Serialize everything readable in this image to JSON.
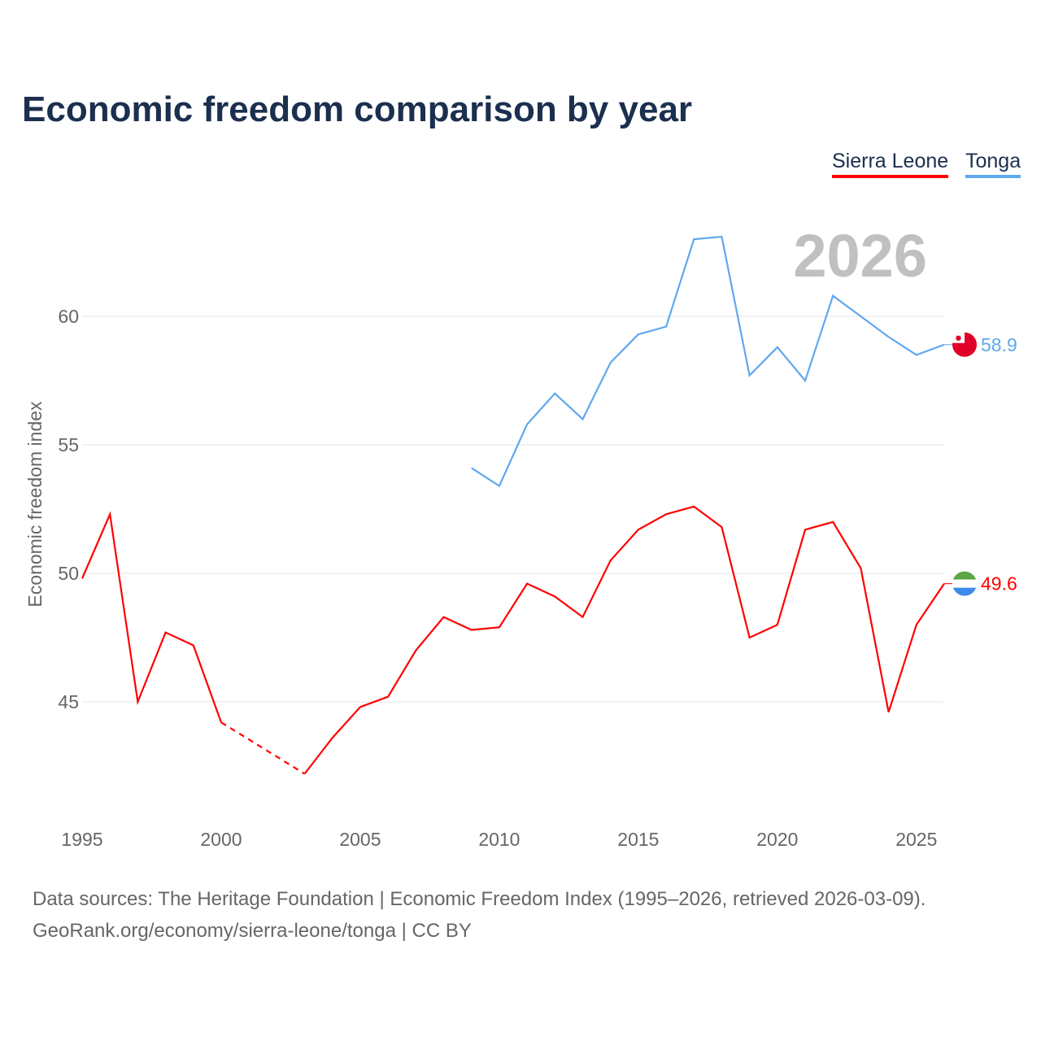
{
  "title": "Economic freedom comparison by year",
  "year_label": "2026",
  "footer": {
    "line1": "Data sources: The Heritage Foundation | Economic Freedom Index (1995–2026, retrieved 2026-03-09).",
    "line2": "GeoRank.org/economy/sierra-leone/tonga | CC BY"
  },
  "chart_data": {
    "type": "line",
    "title": "Economic freedom comparison by year",
    "xlabel": "",
    "ylabel": "Economic freedom index",
    "xlim": [
      1995,
      2026
    ],
    "ylim": [
      41,
      64
    ],
    "xticks": [
      1995,
      2000,
      2005,
      2010,
      2015,
      2020,
      2025
    ],
    "yticks": [
      45,
      50,
      55,
      60
    ],
    "grid": true,
    "legend_position": "top-right",
    "series": [
      {
        "name": "Sierra Leone",
        "color": "#ff0000",
        "end_label": "49.6",
        "flag": "sierra-leone-flag",
        "gap_dashed": [
          2000,
          2003
        ],
        "x": [
          1995,
          1996,
          1997,
          1998,
          1999,
          2000,
          2003,
          2004,
          2005,
          2006,
          2007,
          2008,
          2009,
          2010,
          2011,
          2012,
          2013,
          2014,
          2015,
          2016,
          2017,
          2018,
          2019,
          2020,
          2021,
          2022,
          2023,
          2024,
          2025,
          2026
        ],
        "values": [
          49.8,
          52.3,
          45.0,
          47.7,
          47.2,
          44.2,
          42.2,
          43.6,
          44.8,
          45.2,
          47.0,
          48.3,
          47.8,
          47.9,
          49.6,
          49.1,
          48.3,
          50.5,
          51.7,
          52.3,
          52.6,
          51.8,
          47.5,
          48.0,
          51.7,
          52.0,
          50.2,
          44.6,
          48.0,
          49.6
        ]
      },
      {
        "name": "Tonga",
        "color": "#5fa8ee",
        "end_label": "58.9",
        "flag": "tonga-flag",
        "x": [
          2009,
          2010,
          2011,
          2012,
          2013,
          2014,
          2015,
          2016,
          2017,
          2018,
          2019,
          2020,
          2021,
          2022,
          2023,
          2024,
          2025,
          2026
        ],
        "values": [
          54.1,
          53.4,
          55.8,
          57.0,
          56.0,
          58.2,
          59.3,
          59.6,
          63.0,
          63.1,
          57.7,
          58.8,
          57.5,
          60.8,
          60.0,
          59.2,
          58.5,
          58.9
        ]
      }
    ]
  }
}
